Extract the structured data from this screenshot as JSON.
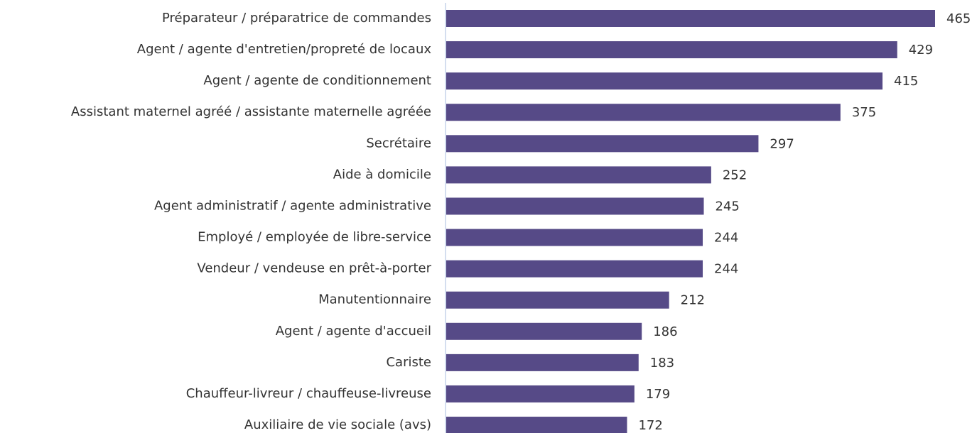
{
  "chart_data": {
    "type": "bar",
    "orientation": "horizontal",
    "categories": [
      "Préparateur / préparatrice de commandes",
      "Agent / agente d'entretien/propreté de locaux",
      "Agent / agente de conditionnement",
      "Assistant maternel agréé / assistante maternelle agréée",
      "Secrétaire",
      "Aide à domicile",
      "Agent administratif / agente administrative",
      "Employé / employée de libre-service",
      "Vendeur / vendeuse en prêt-à-porter",
      "Manutentionnaire",
      "Agent / agente d'accueil",
      "Cariste",
      "Chauffeur-livreur / chauffeuse-livreuse",
      "Auxiliaire de vie sociale (avs)"
    ],
    "values": [
      465,
      429,
      415,
      375,
      297,
      252,
      245,
      244,
      244,
      212,
      186,
      183,
      179,
      172
    ],
    "color": "#564a87",
    "xlim": [
      0,
      465
    ]
  }
}
